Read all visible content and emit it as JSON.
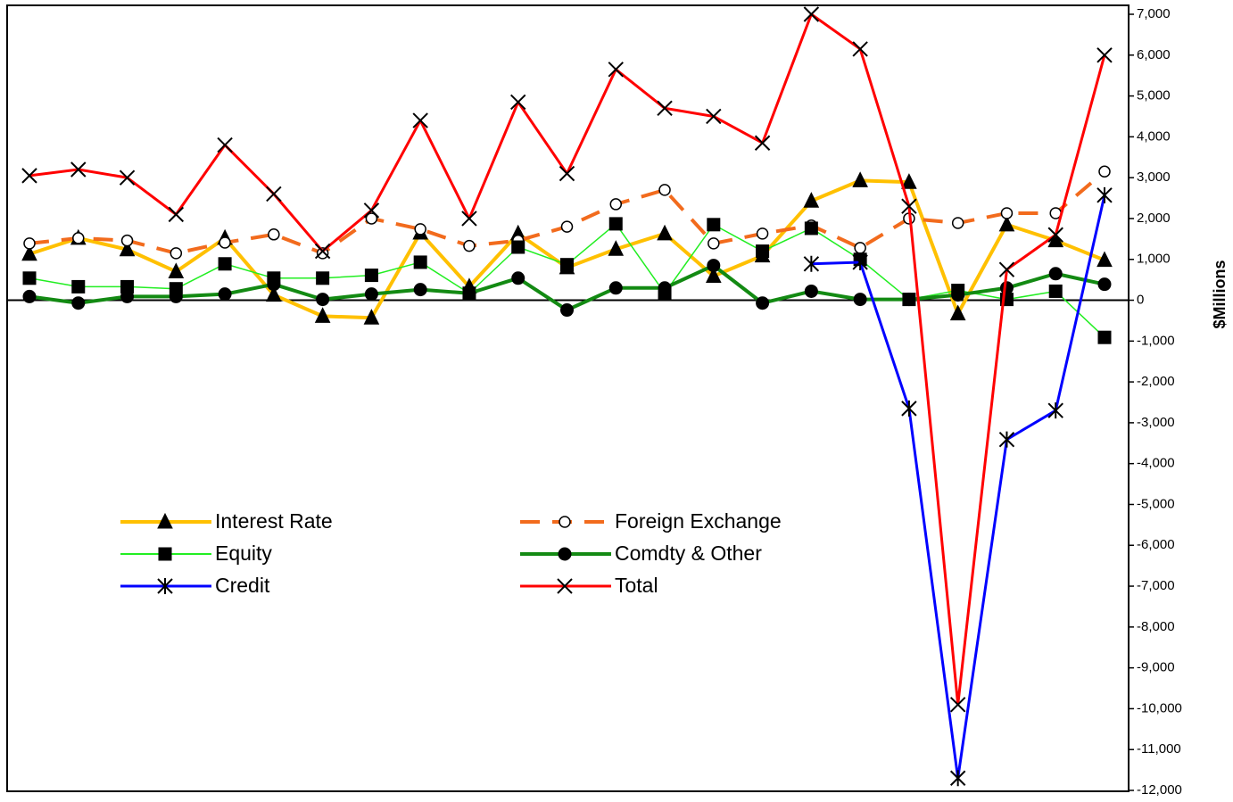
{
  "chart_data": {
    "type": "line",
    "y_label": "$Millions",
    "categories": [
      null,
      null,
      null,
      null,
      null,
      null,
      null,
      null,
      null,
      null,
      null,
      null,
      null,
      null,
      null,
      null,
      null,
      null,
      null,
      null,
      null,
      null,
      null
    ],
    "ylim": [
      -12000,
      7000
    ],
    "yticks": [
      {
        "value": 7000,
        "label": "7,000"
      },
      {
        "value": 6000,
        "label": "6,000"
      },
      {
        "value": 5000,
        "label": "5,000"
      },
      {
        "value": 4000,
        "label": "4,000"
      },
      {
        "value": 3000,
        "label": "3,000"
      },
      {
        "value": 2000,
        "label": "2,000"
      },
      {
        "value": 1000,
        "label": "1,000"
      },
      0,
      {
        "value": -1000,
        "label": "-1,000"
      },
      {
        "value": -2000,
        "label": "-2,000"
      },
      {
        "value": -3000,
        "label": "-3,000"
      },
      {
        "value": -4000,
        "label": "-4,000"
      },
      {
        "value": -5000,
        "label": "-5,000"
      },
      {
        "value": -6000,
        "label": "-6,000"
      },
      {
        "value": -7000,
        "label": "-7,000"
      },
      {
        "value": -8000,
        "label": "-8,000"
      },
      {
        "value": -9000,
        "label": "-9,000"
      },
      {
        "value": -10000,
        "label": "-10,000"
      },
      {
        "value": -11000,
        "label": "-11,000"
      },
      {
        "value": -12000,
        "label": "-12,000"
      }
    ],
    "series": [
      {
        "name": "Interest Rate",
        "color": "#ffc000",
        "marker": "triangle",
        "values": [
          1130,
          1520,
          1240,
          700,
          1520,
          130,
          -390,
          -430,
          1650,
          330,
          1630,
          800,
          1250,
          1630,
          590,
          1090,
          2430,
          2930,
          2890,
          -330,
          1850,
          1460,
          980
        ]
      },
      {
        "name": "Foreign Exchange",
        "color": "#f26b1d",
        "marker": "open-circle",
        "dashed": true,
        "values": [
          1390,
          1520,
          1460,
          1150,
          1410,
          1610,
          1150,
          2000,
          1740,
          1330,
          1460,
          1800,
          2350,
          2700,
          1390,
          1630,
          1830,
          1280,
          2000,
          1890,
          2130,
          2130,
          3150
        ]
      },
      {
        "name": "Equity",
        "color": "#22ee22",
        "marker": "square",
        "values": [
          540,
          330,
          330,
          280,
          890,
          540,
          540,
          610,
          930,
          170,
          1300,
          870,
          1870,
          170,
          1850,
          1200,
          1760,
          1000,
          20,
          240,
          20,
          220,
          -910
        ]
      },
      {
        "name": "Comdty & Other",
        "color": "#138a13",
        "marker": "filled-circle",
        "values": [
          90,
          -70,
          90,
          90,
          150,
          390,
          20,
          150,
          260,
          170,
          540,
          -240,
          300,
          300,
          850,
          -70,
          220,
          20,
          20,
          130,
          300,
          650,
          390
        ]
      },
      {
        "name": "Credit",
        "color": "#0000ff",
        "marker": "asterisk",
        "values": [
          null,
          null,
          null,
          null,
          null,
          null,
          null,
          null,
          null,
          null,
          null,
          null,
          null,
          null,
          null,
          null,
          890,
          930,
          -2650,
          -11700,
          -3410,
          -2700,
          2570
        ]
      },
      {
        "name": "Total",
        "color": "#ff0000",
        "marker": "cross",
        "values": [
          3050,
          3200,
          3000,
          2100,
          3800,
          2600,
          1200,
          2200,
          4400,
          2000,
          4850,
          3100,
          5650,
          4700,
          4500,
          3850,
          7000,
          6150,
          2300,
          -9900,
          750,
          1600,
          6000
        ]
      }
    ]
  }
}
